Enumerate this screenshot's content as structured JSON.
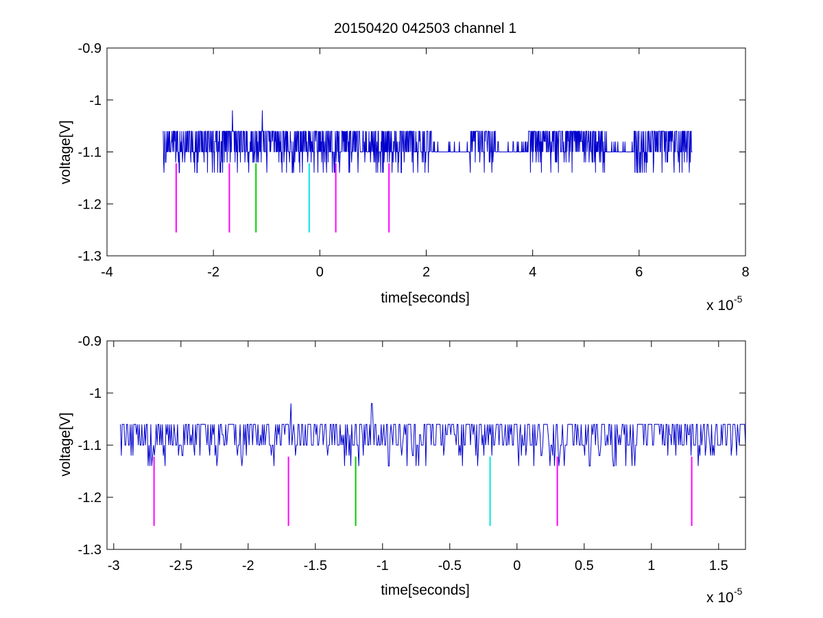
{
  "figure": {
    "title": "20150420 042503 channel 1",
    "background": "#ffffff",
    "trace_color": "#0000cc",
    "marker_colors": {
      "magenta": "#ff00ff",
      "green": "#00cc00",
      "cyan": "#00e5e5"
    }
  },
  "chart_data": [
    {
      "type": "line",
      "title": "20150420 042503 channel 1",
      "xlabel": "time[seconds]",
      "ylabel": "voltage[V]",
      "x_exponent_label": "x 10",
      "x_exponent": "-5",
      "xlim": [
        -4,
        8
      ],
      "ylim": [
        -1.3,
        -0.9
      ],
      "xticks": [
        -4,
        -2,
        0,
        2,
        4,
        6,
        8
      ],
      "xtick_labels": [
        "-4",
        "-2",
        "0",
        "2",
        "4",
        "6",
        "8"
      ],
      "yticks": [
        -1.3,
        -1.2,
        -1.1,
        -1.0,
        -0.9
      ],
      "ytick_labels": [
        "-1.3",
        "-1.2",
        "-1.1",
        "-1",
        "-0.9"
      ],
      "grid": false,
      "series": [
        {
          "kind": "digitized-noise-trace",
          "x_range": [
            -2.95,
            7.0
          ],
          "levels": [
            -1.14,
            -1.12,
            -1.1,
            -1.08,
            -1.06,
            -1.04,
            -1.02
          ],
          "baseline": -1.1,
          "peaks": [
            [
              -1.64,
              -1.02
            ],
            [
              -1.08,
              -1.02
            ]
          ]
        }
      ],
      "markers": [
        {
          "x": -2.7,
          "y": [
            -1.255,
            -1.122
          ],
          "color": "magenta"
        },
        {
          "x": -1.7,
          "y": [
            -1.255,
            -1.122
          ],
          "color": "magenta"
        },
        {
          "x": -1.2,
          "y": [
            -1.255,
            -1.122
          ],
          "color": "green"
        },
        {
          "x": -0.2,
          "y": [
            -1.255,
            -1.122
          ],
          "color": "cyan"
        },
        {
          "x": 0.3,
          "y": [
            -1.255,
            -1.122
          ],
          "color": "magenta"
        },
        {
          "x": 1.3,
          "y": [
            -1.255,
            -1.122
          ],
          "color": "magenta"
        }
      ]
    },
    {
      "type": "line",
      "title": "",
      "xlabel": "time[seconds]",
      "ylabel": "voltage[V]",
      "x_exponent_label": "x 10",
      "x_exponent": "-5",
      "xlim": [
        -3.05,
        1.7
      ],
      "ylim": [
        -1.3,
        -0.9
      ],
      "xticks": [
        -3,
        -2.5,
        -2,
        -1.5,
        -1,
        -0.5,
        0,
        0.5,
        1,
        1.5
      ],
      "xtick_labels": [
        "-3",
        "-2.5",
        "-2",
        "-1.5",
        "-1",
        "-0.5",
        "0",
        "0.5",
        "1",
        "1.5"
      ],
      "yticks": [
        -1.3,
        -1.2,
        -1.1,
        -1.0,
        -0.9
      ],
      "ytick_labels": [
        "-1.3",
        "-1.2",
        "-1.1",
        "-1",
        "-0.9"
      ],
      "grid": false,
      "series": [
        {
          "kind": "digitized-noise-trace",
          "x_range": [
            -2.95,
            1.7
          ],
          "levels": [
            -1.14,
            -1.12,
            -1.1,
            -1.08,
            -1.06,
            -1.04,
            -1.02
          ],
          "baseline": -1.1,
          "peaks": [
            [
              -1.68,
              -1.02
            ],
            [
              -1.08,
              -1.02
            ]
          ]
        }
      ],
      "markers": [
        {
          "x": -2.7,
          "y": [
            -1.255,
            -1.122
          ],
          "color": "magenta"
        },
        {
          "x": -1.7,
          "y": [
            -1.255,
            -1.122
          ],
          "color": "magenta"
        },
        {
          "x": -1.2,
          "y": [
            -1.255,
            -1.122
          ],
          "color": "green"
        },
        {
          "x": -0.2,
          "y": [
            -1.255,
            -1.122
          ],
          "color": "cyan"
        },
        {
          "x": 0.3,
          "y": [
            -1.255,
            -1.122
          ],
          "color": "magenta"
        },
        {
          "x": 1.3,
          "y": [
            -1.255,
            -1.122
          ],
          "color": "magenta"
        }
      ]
    }
  ]
}
